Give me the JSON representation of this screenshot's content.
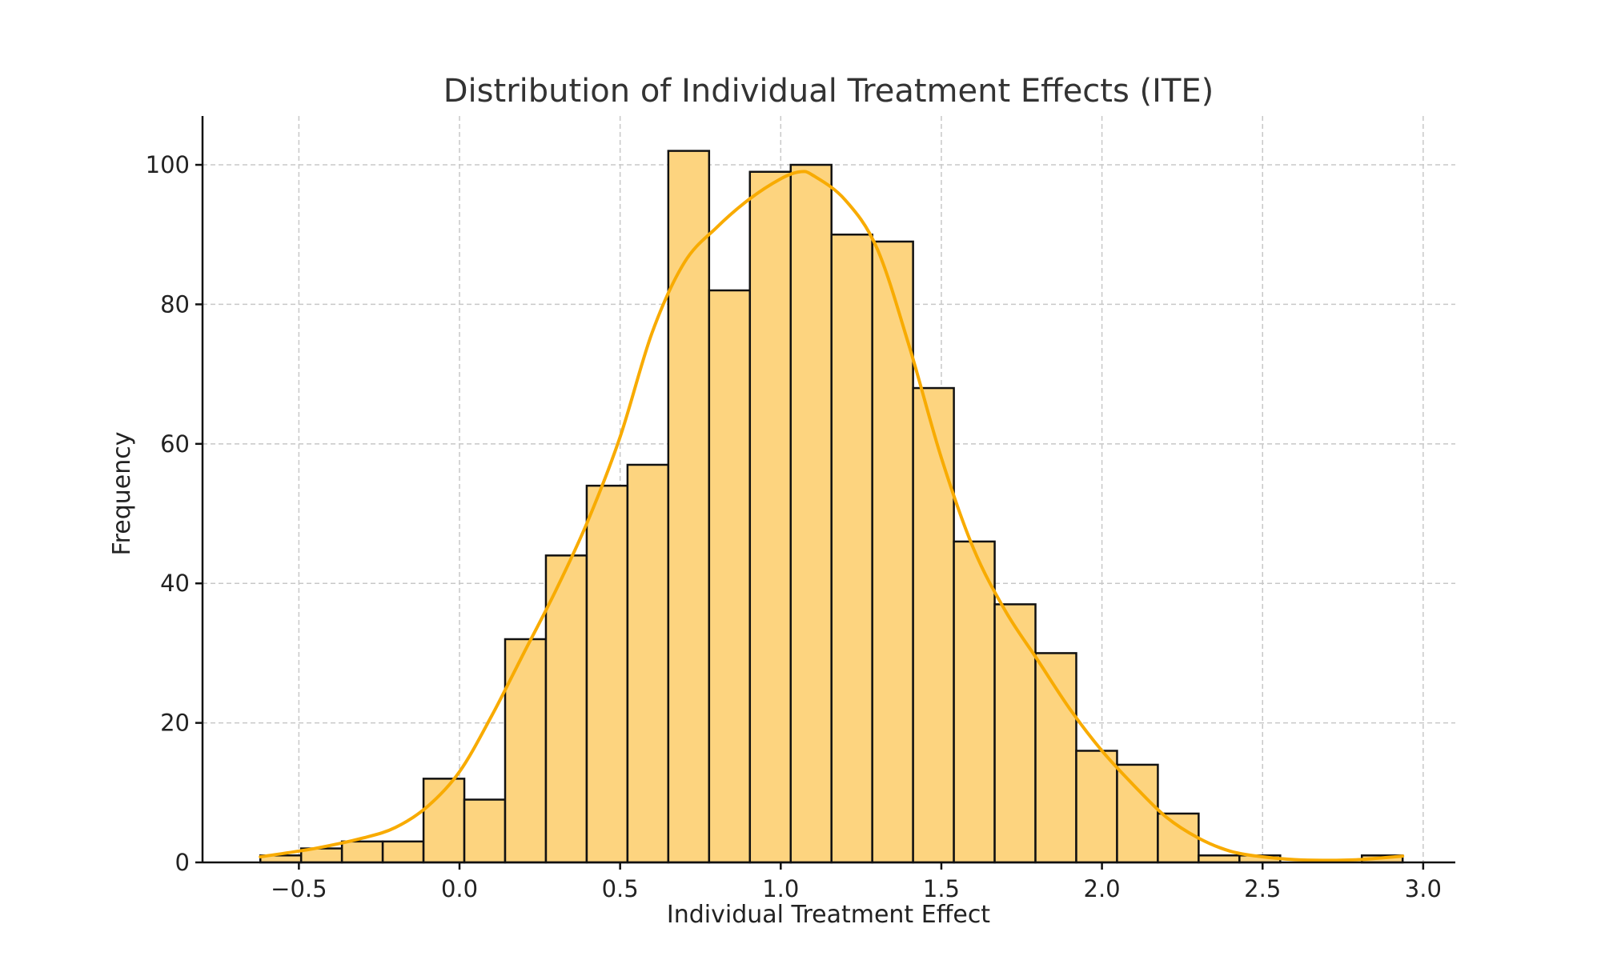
{
  "chart_data": {
    "type": "bar",
    "subtype": "histogram-with-kde",
    "title": "Distribution of Individual Treatment Effects (ITE)",
    "xlabel": "Individual Treatment Effect",
    "ylabel": "Frequency",
    "xlim": [
      -0.8,
      3.1
    ],
    "ylim": [
      0,
      107
    ],
    "grid": true,
    "colors": {
      "bar_fill": "#fdd47f",
      "bar_edge": "#111111",
      "kde": "#f8ab00",
      "grid": "#c8c8c8"
    },
    "x_ticks": [
      {
        "value": -0.5,
        "label": "−0.5"
      },
      {
        "value": 0.0,
        "label": "0.0"
      },
      {
        "value": 0.5,
        "label": "0.5"
      },
      {
        "value": 1.0,
        "label": "1.0"
      },
      {
        "value": 1.5,
        "label": "1.5"
      },
      {
        "value": 2.0,
        "label": "2.0"
      },
      {
        "value": 2.5,
        "label": "2.5"
      },
      {
        "value": 3.0,
        "label": "3.0"
      }
    ],
    "y_ticks": [
      {
        "value": 0,
        "label": "0"
      },
      {
        "value": 20,
        "label": "20"
      },
      {
        "value": 40,
        "label": "40"
      },
      {
        "value": 60,
        "label": "60"
      },
      {
        "value": 80,
        "label": "80"
      },
      {
        "value": 100,
        "label": "100"
      }
    ],
    "bins": [
      {
        "x0": -0.62,
        "x1": -0.493,
        "count": 1
      },
      {
        "x0": -0.493,
        "x1": -0.366,
        "count": 2
      },
      {
        "x0": -0.366,
        "x1": -0.239,
        "count": 3
      },
      {
        "x0": -0.239,
        "x1": -0.112,
        "count": 3
      },
      {
        "x0": -0.112,
        "x1": 0.015,
        "count": 12
      },
      {
        "x0": 0.015,
        "x1": 0.142,
        "count": 9
      },
      {
        "x0": 0.142,
        "x1": 0.269,
        "count": 32
      },
      {
        "x0": 0.269,
        "x1": 0.396,
        "count": 44
      },
      {
        "x0": 0.396,
        "x1": 0.523,
        "count": 54
      },
      {
        "x0": 0.523,
        "x1": 0.65,
        "count": 57
      },
      {
        "x0": 0.65,
        "x1": 0.777,
        "count": 102
      },
      {
        "x0": 0.777,
        "x1": 0.904,
        "count": 82
      },
      {
        "x0": 0.904,
        "x1": 1.031,
        "count": 99
      },
      {
        "x0": 1.031,
        "x1": 1.158,
        "count": 100
      },
      {
        "x0": 1.158,
        "x1": 1.285,
        "count": 90
      },
      {
        "x0": 1.285,
        "x1": 1.412,
        "count": 89
      },
      {
        "x0": 1.412,
        "x1": 1.539,
        "count": 68
      },
      {
        "x0": 1.539,
        "x1": 1.666,
        "count": 46
      },
      {
        "x0": 1.666,
        "x1": 1.793,
        "count": 37
      },
      {
        "x0": 1.793,
        "x1": 1.92,
        "count": 30
      },
      {
        "x0": 1.92,
        "x1": 2.047,
        "count": 16
      },
      {
        "x0": 2.047,
        "x1": 2.174,
        "count": 14
      },
      {
        "x0": 2.174,
        "x1": 2.301,
        "count": 7
      },
      {
        "x0": 2.301,
        "x1": 2.428,
        "count": 1
      },
      {
        "x0": 2.428,
        "x1": 2.555,
        "count": 1
      },
      {
        "x0": 2.555,
        "x1": 2.682,
        "count": 0
      },
      {
        "x0": 2.682,
        "x1": 2.809,
        "count": 0
      },
      {
        "x0": 2.809,
        "x1": 2.936,
        "count": 1
      }
    ],
    "kde": {
      "x": [
        -0.62,
        -0.45,
        -0.3,
        -0.2,
        -0.1,
        0.0,
        0.1,
        0.2,
        0.3,
        0.4,
        0.5,
        0.6,
        0.7,
        0.8,
        0.9,
        1.0,
        1.06,
        1.1,
        1.2,
        1.3,
        1.4,
        1.5,
        1.6,
        1.7,
        1.8,
        1.9,
        2.0,
        2.1,
        2.2,
        2.3,
        2.4,
        2.5,
        2.6,
        2.7,
        2.8,
        2.936
      ],
      "y": [
        0.8,
        2,
        3.5,
        5,
        8,
        13,
        21,
        30,
        39,
        49,
        61,
        76,
        86,
        91,
        95,
        98,
        99,
        98.5,
        95,
        88,
        74,
        58,
        45,
        36,
        29,
        22,
        16,
        11,
        6.5,
        3.5,
        1.6,
        0.8,
        0.4,
        0.3,
        0.4,
        0.9
      ]
    }
  }
}
